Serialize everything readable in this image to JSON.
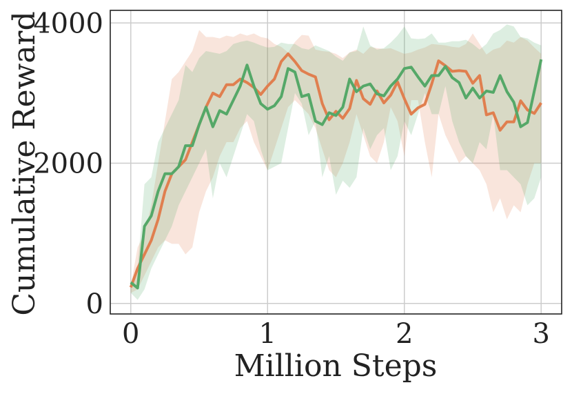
{
  "chart_data": {
    "type": "line",
    "title": "",
    "xlabel": "Million Steps",
    "ylabel": "Cumulative Reward",
    "xlim": [
      -0.15,
      3.15
    ],
    "ylim": [
      -150,
      4180
    ],
    "xticks": [
      0,
      1,
      2,
      3
    ],
    "xtick_labels": [
      "0",
      "1",
      "2",
      "3"
    ],
    "yticks": [
      0,
      2000,
      4000
    ],
    "ytick_labels": [
      "0",
      "2000",
      "4000"
    ],
    "grid": true,
    "legend": "none",
    "x_step": 0.05,
    "series": [
      {
        "name": "orange",
        "color": "#e07f4f",
        "values": [
          230,
          500,
          700,
          900,
          1200,
          1600,
          1850,
          1950,
          2050,
          2300,
          2550,
          2800,
          3000,
          2950,
          3120,
          3120,
          3200,
          3150,
          3080,
          2980,
          3100,
          3200,
          3450,
          3560,
          3450,
          3320,
          3270,
          3230,
          2850,
          2620,
          2740,
          2640,
          2780,
          3180,
          2920,
          2840,
          3030,
          2860,
          2970,
          3160,
          2920,
          2700,
          2790,
          2840,
          3130,
          3460,
          3390,
          3310,
          3320,
          3310,
          3140,
          3250,
          2690,
          2720,
          2470,
          2590,
          2590,
          2890,
          2760,
          2710,
          2860
        ],
        "upper": [
          250,
          800,
          1000,
          1400,
          2000,
          2600,
          3200,
          3300,
          3450,
          3600,
          3900,
          3800,
          3800,
          3780,
          3820,
          3800,
          3850,
          3820,
          3850,
          3800,
          3780,
          3700,
          3660,
          3580,
          3730,
          3830,
          3820,
          3620,
          3600,
          3590,
          3560,
          3500,
          3580,
          3620,
          3560,
          3660,
          3640,
          3630,
          3640,
          3600,
          3560,
          3580,
          3620,
          3650,
          3700,
          3690,
          3680,
          3660,
          3650,
          3700,
          3850,
          3700,
          3550,
          3620,
          3650,
          3750,
          3720,
          3800,
          3750,
          3650,
          3560
        ],
        "lower": [
          150,
          200,
          400,
          600,
          800,
          900,
          850,
          850,
          700,
          800,
          1300,
          1600,
          1800,
          2100,
          2300,
          2300,
          2500,
          2600,
          2300,
          2100,
          1900,
          2200,
          2500,
          2800,
          2900,
          2800,
          2700,
          2500,
          2200,
          1900,
          1800,
          2000,
          2300,
          2700,
          2400,
          2100,
          2000,
          2300,
          2800,
          2600,
          2100,
          2900,
          2900,
          2300,
          1800,
          2700,
          2400,
          2200,
          2000,
          2100,
          2000,
          1900,
          1700,
          1300,
          1500,
          1200,
          1400,
          1300,
          1700,
          2000,
          2000
        ]
      },
      {
        "name": "green",
        "color": "#55a868",
        "values": [
          300,
          220,
          1100,
          1250,
          1600,
          1850,
          1850,
          1950,
          2250,
          2250,
          2550,
          2800,
          2520,
          2750,
          2700,
          2900,
          3100,
          3400,
          3100,
          2850,
          2770,
          2820,
          2950,
          3350,
          3300,
          2950,
          2980,
          2600,
          2550,
          2720,
          2680,
          2800,
          3200,
          3020,
          3100,
          3130,
          2990,
          2960,
          3100,
          3200,
          3350,
          3370,
          3230,
          3100,
          3250,
          3250,
          3380,
          3220,
          3150,
          2930,
          3070,
          2930,
          3030,
          3010,
          3250,
          3020,
          2870,
          2520,
          2580,
          3030,
          3480
        ],
        "upper": [
          250,
          500,
          1700,
          1800,
          2300,
          2500,
          2700,
          2900,
          3400,
          3300,
          3500,
          3600,
          3580,
          3560,
          3600,
          3700,
          3730,
          3750,
          3720,
          3680,
          3650,
          3660,
          3720,
          3700,
          3700,
          3640,
          3620,
          3680,
          3640,
          3600,
          3520,
          3460,
          3580,
          3600,
          3950,
          3680,
          3620,
          3640,
          3720,
          3820,
          3950,
          3780,
          3770,
          3780,
          3850,
          3720,
          3720,
          3740,
          3740,
          3760,
          3700,
          3620,
          3700,
          3850,
          3900,
          3980,
          3950,
          3800,
          3780,
          3720,
          3680
        ],
        "lower": [
          150,
          50,
          200,
          500,
          700,
          900,
          1100,
          1400,
          1600,
          1800,
          2000,
          2200,
          1500,
          2000,
          1800,
          2100,
          2400,
          2700,
          2600,
          2200,
          1900,
          1950,
          2000,
          2500,
          3000,
          2850,
          2400,
          2600,
          1800,
          2100,
          1550,
          1750,
          1650,
          1800,
          2500,
          2200,
          2400,
          2500,
          1900,
          2100,
          2600,
          2400,
          2700,
          3000,
          2700,
          2700,
          3100,
          2600,
          2300,
          2100,
          2000,
          2300,
          2200,
          2700,
          1900,
          1900,
          1800,
          1700,
          1400,
          1500,
          1800
        ]
      }
    ]
  }
}
